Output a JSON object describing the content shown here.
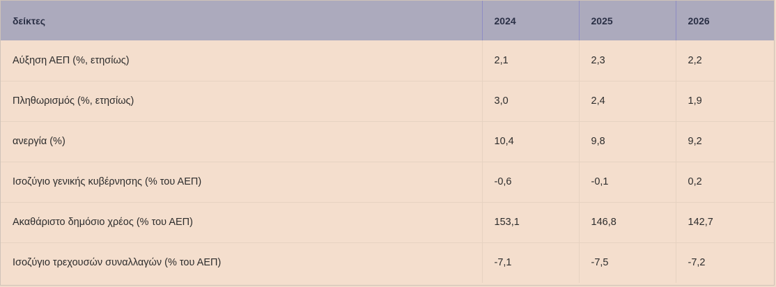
{
  "table": {
    "headers": [
      "δείκτες",
      "2024",
      "2025",
      "2026"
    ],
    "rows": [
      [
        "Αύξηση ΑΕΠ (%, ετησίως)",
        "2,1",
        "2,3",
        "2,2"
      ],
      [
        "Πληθωρισμός (%, ετησίως)",
        "3,0",
        "2,4",
        "1,9"
      ],
      [
        "ανεργία (%)",
        "10,4",
        "9,8",
        "9,2"
      ],
      [
        "Ισοζύγιο γενικής κυβέρνησης (% του ΑΕΠ)",
        "-0,6",
        "-0,1",
        "0,2"
      ],
      [
        "Ακαθάριστο δημόσιο χρέος (% του ΑΕΠ)",
        "153,1",
        "146,8",
        "142,7"
      ],
      [
        "Ισοζύγιο τρεχουσών συναλλαγών (% του ΑΕΠ)",
        "-7,1",
        "-7,5",
        "-7,2"
      ]
    ]
  },
  "colors": {
    "header_background": "#acaabd",
    "body_background": "#f4decd",
    "header_divider": "#8e8cc4"
  }
}
